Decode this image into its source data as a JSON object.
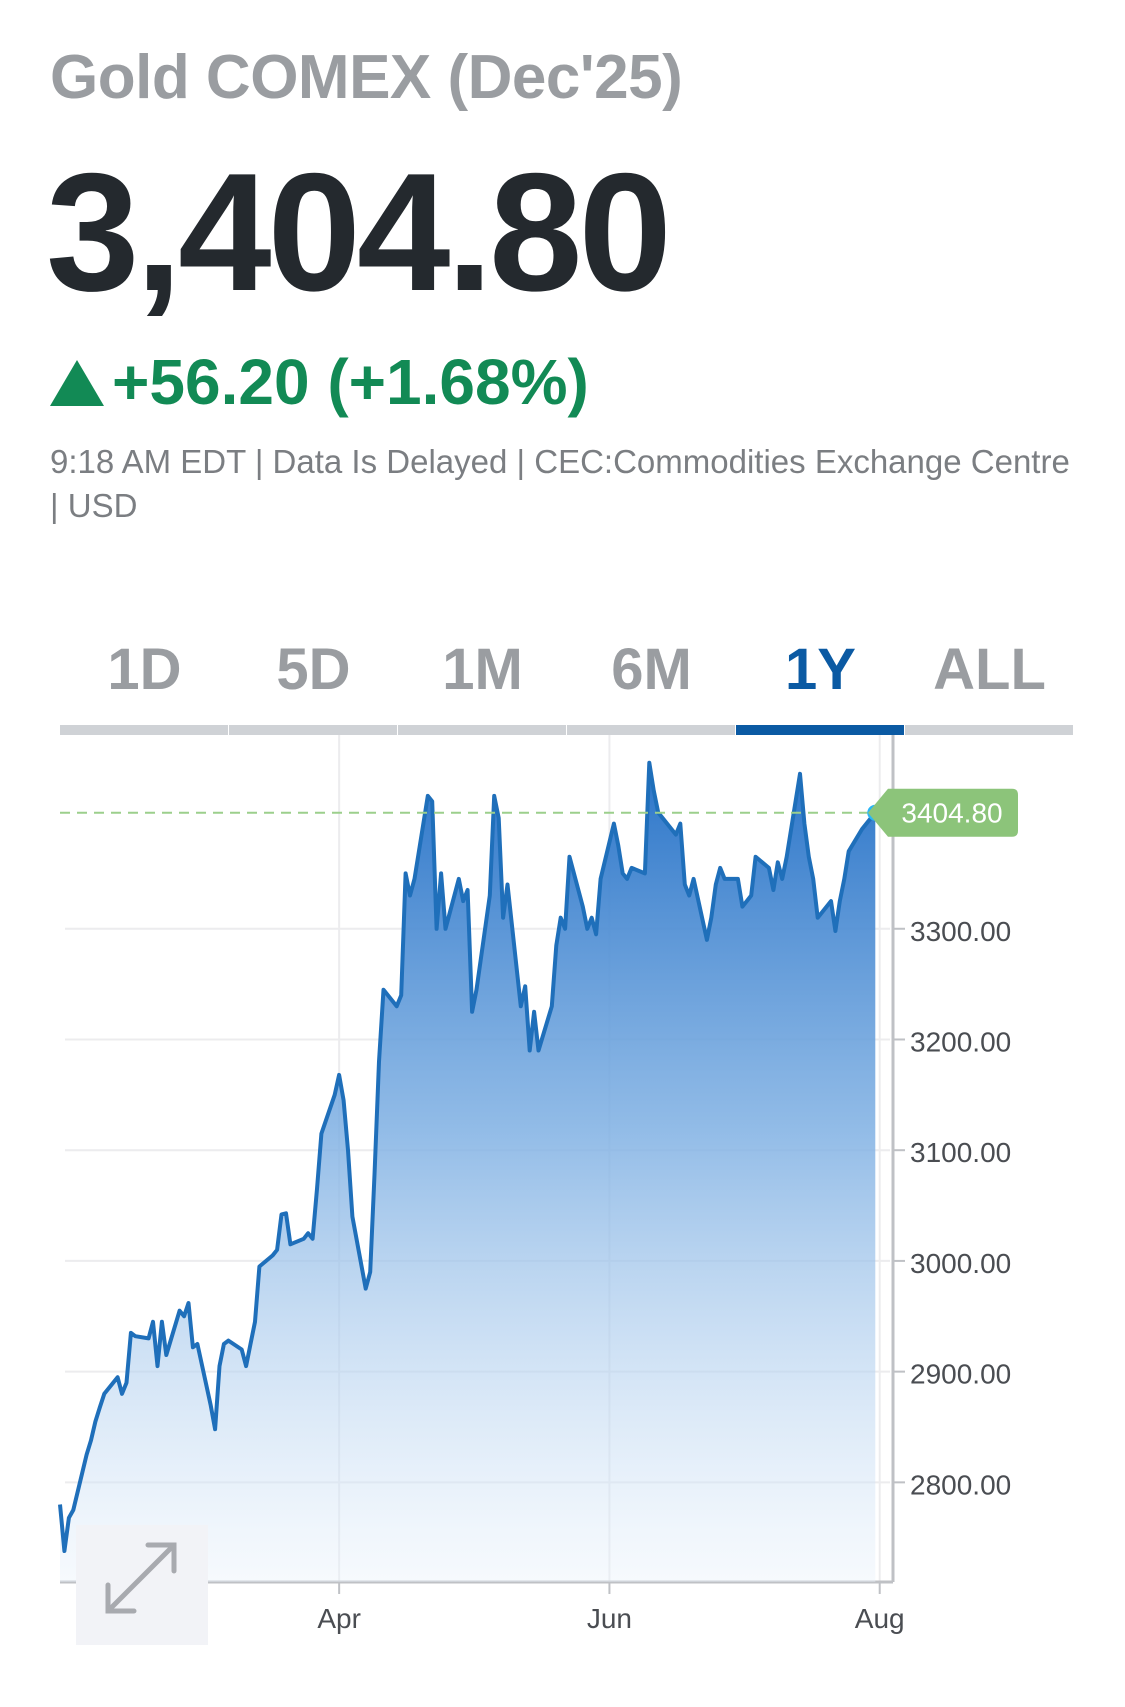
{
  "header": {
    "title": "Gold COMEX (Dec'25)",
    "price": "3,404.80",
    "change": "+56.20 (+1.68%)",
    "meta": "9:18 AM EDT | Data Is Delayed | CEC:Commodities Exchange Centre | USD"
  },
  "colors": {
    "up": "#128a55",
    "line": "#1f6fba",
    "active_tab": "#0b5aa3",
    "current_label": "#8cc47a",
    "current_dot": "#29b6f6"
  },
  "tabs": [
    {
      "label": "1D",
      "active": false
    },
    {
      "label": "5D",
      "active": false
    },
    {
      "label": "1M",
      "active": false
    },
    {
      "label": "6M",
      "active": false
    },
    {
      "label": "1Y",
      "active": true
    },
    {
      "label": "ALL",
      "active": false
    }
  ],
  "icons": {
    "expand": "expand-arrows-icon",
    "up": "triangle-up-icon"
  },
  "chart_data": {
    "type": "area",
    "title": "",
    "xlabel": "",
    "ylabel": "",
    "x_ticks": [
      {
        "label": "Apr",
        "date": "2025-04-01"
      },
      {
        "label": "Jun",
        "date": "2025-06-01"
      },
      {
        "label": "Aug",
        "date": "2025-08-01"
      }
    ],
    "y_ticks": [
      2800,
      2900,
      3000,
      3100,
      3200,
      3300
    ],
    "y_tick_labels": [
      "2800.00",
      "2900.00",
      "3000.00",
      "3100.00",
      "3200.00",
      "3300.00"
    ],
    "xlim": [
      "2025-01-28",
      "2025-08-04"
    ],
    "ylim": [
      2710,
      3475
    ],
    "current_value": 3404.8,
    "current_label": "3404.80",
    "grid": true,
    "series": [
      {
        "points": [
          [
            "2025-01-28",
            2780
          ],
          [
            "2025-01-29",
            2738
          ],
          [
            "2025-01-30",
            2768
          ],
          [
            "2025-01-31",
            2775
          ],
          [
            "2025-02-03",
            2825
          ],
          [
            "2025-02-04",
            2838
          ],
          [
            "2025-02-05",
            2855
          ],
          [
            "2025-02-06",
            2868
          ],
          [
            "2025-02-07",
            2880
          ],
          [
            "2025-02-10",
            2895
          ],
          [
            "2025-02-11",
            2880
          ],
          [
            "2025-02-12",
            2890
          ],
          [
            "2025-02-13",
            2935
          ],
          [
            "2025-02-14",
            2932
          ],
          [
            "2025-02-17",
            2930
          ],
          [
            "2025-02-18",
            2945
          ],
          [
            "2025-02-19",
            2905
          ],
          [
            "2025-02-20",
            2945
          ],
          [
            "2025-02-21",
            2915
          ],
          [
            "2025-02-24",
            2955
          ],
          [
            "2025-02-25",
            2950
          ],
          [
            "2025-02-26",
            2962
          ],
          [
            "2025-02-27",
            2922
          ],
          [
            "2025-02-28",
            2925
          ],
          [
            "2025-03-03",
            2870
          ],
          [
            "2025-03-04",
            2848
          ],
          [
            "2025-03-05",
            2905
          ],
          [
            "2025-03-06",
            2925
          ],
          [
            "2025-03-07",
            2928
          ],
          [
            "2025-03-10",
            2920
          ],
          [
            "2025-03-11",
            2905
          ],
          [
            "2025-03-12",
            2925
          ],
          [
            "2025-03-13",
            2945
          ],
          [
            "2025-03-14",
            2995
          ],
          [
            "2025-03-17",
            3005
          ],
          [
            "2025-03-18",
            3010
          ],
          [
            "2025-03-19",
            3042
          ],
          [
            "2025-03-20",
            3043
          ],
          [
            "2025-03-21",
            3015
          ],
          [
            "2025-03-24",
            3020
          ],
          [
            "2025-03-25",
            3025
          ],
          [
            "2025-03-26",
            3020
          ],
          [
            "2025-03-27",
            3065
          ],
          [
            "2025-03-28",
            3115
          ],
          [
            "2025-03-31",
            3150
          ],
          [
            "2025-04-01",
            3168
          ],
          [
            "2025-04-02",
            3145
          ],
          [
            "2025-04-03",
            3100
          ],
          [
            "2025-04-04",
            3040
          ],
          [
            "2025-04-07",
            2975
          ],
          [
            "2025-04-08",
            2990
          ],
          [
            "2025-04-09",
            3080
          ],
          [
            "2025-04-10",
            3180
          ],
          [
            "2025-04-11",
            3245
          ],
          [
            "2025-04-14",
            3230
          ],
          [
            "2025-04-15",
            3240
          ],
          [
            "2025-04-16",
            3350
          ],
          [
            "2025-04-17",
            3330
          ],
          [
            "2025-04-18",
            3345
          ],
          [
            "2025-04-21",
            3420
          ],
          [
            "2025-04-22",
            3415
          ],
          [
            "2025-04-23",
            3300
          ],
          [
            "2025-04-24",
            3350
          ],
          [
            "2025-04-25",
            3300
          ],
          [
            "2025-04-28",
            3345
          ],
          [
            "2025-04-29",
            3325
          ],
          [
            "2025-04-30",
            3335
          ],
          [
            "2025-05-01",
            3225
          ],
          [
            "2025-05-02",
            3245
          ],
          [
            "2025-05-05",
            3330
          ],
          [
            "2025-05-06",
            3420
          ],
          [
            "2025-05-07",
            3400
          ],
          [
            "2025-05-08",
            3310
          ],
          [
            "2025-05-09",
            3340
          ],
          [
            "2025-05-12",
            3230
          ],
          [
            "2025-05-13",
            3248
          ],
          [
            "2025-05-14",
            3190
          ],
          [
            "2025-05-15",
            3225
          ],
          [
            "2025-05-16",
            3190
          ],
          [
            "2025-05-19",
            3230
          ],
          [
            "2025-05-20",
            3285
          ],
          [
            "2025-05-21",
            3310
          ],
          [
            "2025-05-22",
            3300
          ],
          [
            "2025-05-23",
            3365
          ],
          [
            "2025-05-26",
            3320
          ],
          [
            "2025-05-27",
            3300
          ],
          [
            "2025-05-28",
            3310
          ],
          [
            "2025-05-29",
            3295
          ],
          [
            "2025-05-30",
            3345
          ],
          [
            "2025-06-02",
            3395
          ],
          [
            "2025-06-03",
            3375
          ],
          [
            "2025-06-04",
            3350
          ],
          [
            "2025-06-05",
            3345
          ],
          [
            "2025-06-06",
            3355
          ],
          [
            "2025-06-09",
            3350
          ],
          [
            "2025-06-10",
            3450
          ],
          [
            "2025-06-11",
            3425
          ],
          [
            "2025-06-12",
            3405
          ],
          [
            "2025-06-13",
            3400
          ],
          [
            "2025-06-16",
            3385
          ],
          [
            "2025-06-17",
            3395
          ],
          [
            "2025-06-18",
            3340
          ],
          [
            "2025-06-19",
            3330
          ],
          [
            "2025-06-20",
            3345
          ],
          [
            "2025-06-23",
            3290
          ],
          [
            "2025-06-24",
            3310
          ],
          [
            "2025-06-25",
            3340
          ],
          [
            "2025-06-26",
            3355
          ],
          [
            "2025-06-27",
            3345
          ],
          [
            "2025-06-30",
            3345
          ],
          [
            "2025-07-01",
            3320
          ],
          [
            "2025-07-02",
            3325
          ],
          [
            "2025-07-03",
            3330
          ],
          [
            "2025-07-04",
            3365
          ],
          [
            "2025-07-07",
            3355
          ],
          [
            "2025-07-08",
            3335
          ],
          [
            "2025-07-09",
            3360
          ],
          [
            "2025-07-10",
            3345
          ],
          [
            "2025-07-11",
            3365
          ],
          [
            "2025-07-14",
            3440
          ],
          [
            "2025-07-15",
            3395
          ],
          [
            "2025-07-16",
            3365
          ],
          [
            "2025-07-17",
            3345
          ],
          [
            "2025-07-18",
            3310
          ],
          [
            "2025-07-21",
            3325
          ],
          [
            "2025-07-22",
            3298
          ],
          [
            "2025-07-23",
            3325
          ],
          [
            "2025-07-24",
            3345
          ],
          [
            "2025-07-25",
            3370
          ],
          [
            "2025-07-28",
            3390
          ],
          [
            "2025-07-29",
            3395
          ],
          [
            "2025-07-31",
            3404.8
          ]
        ]
      }
    ]
  }
}
